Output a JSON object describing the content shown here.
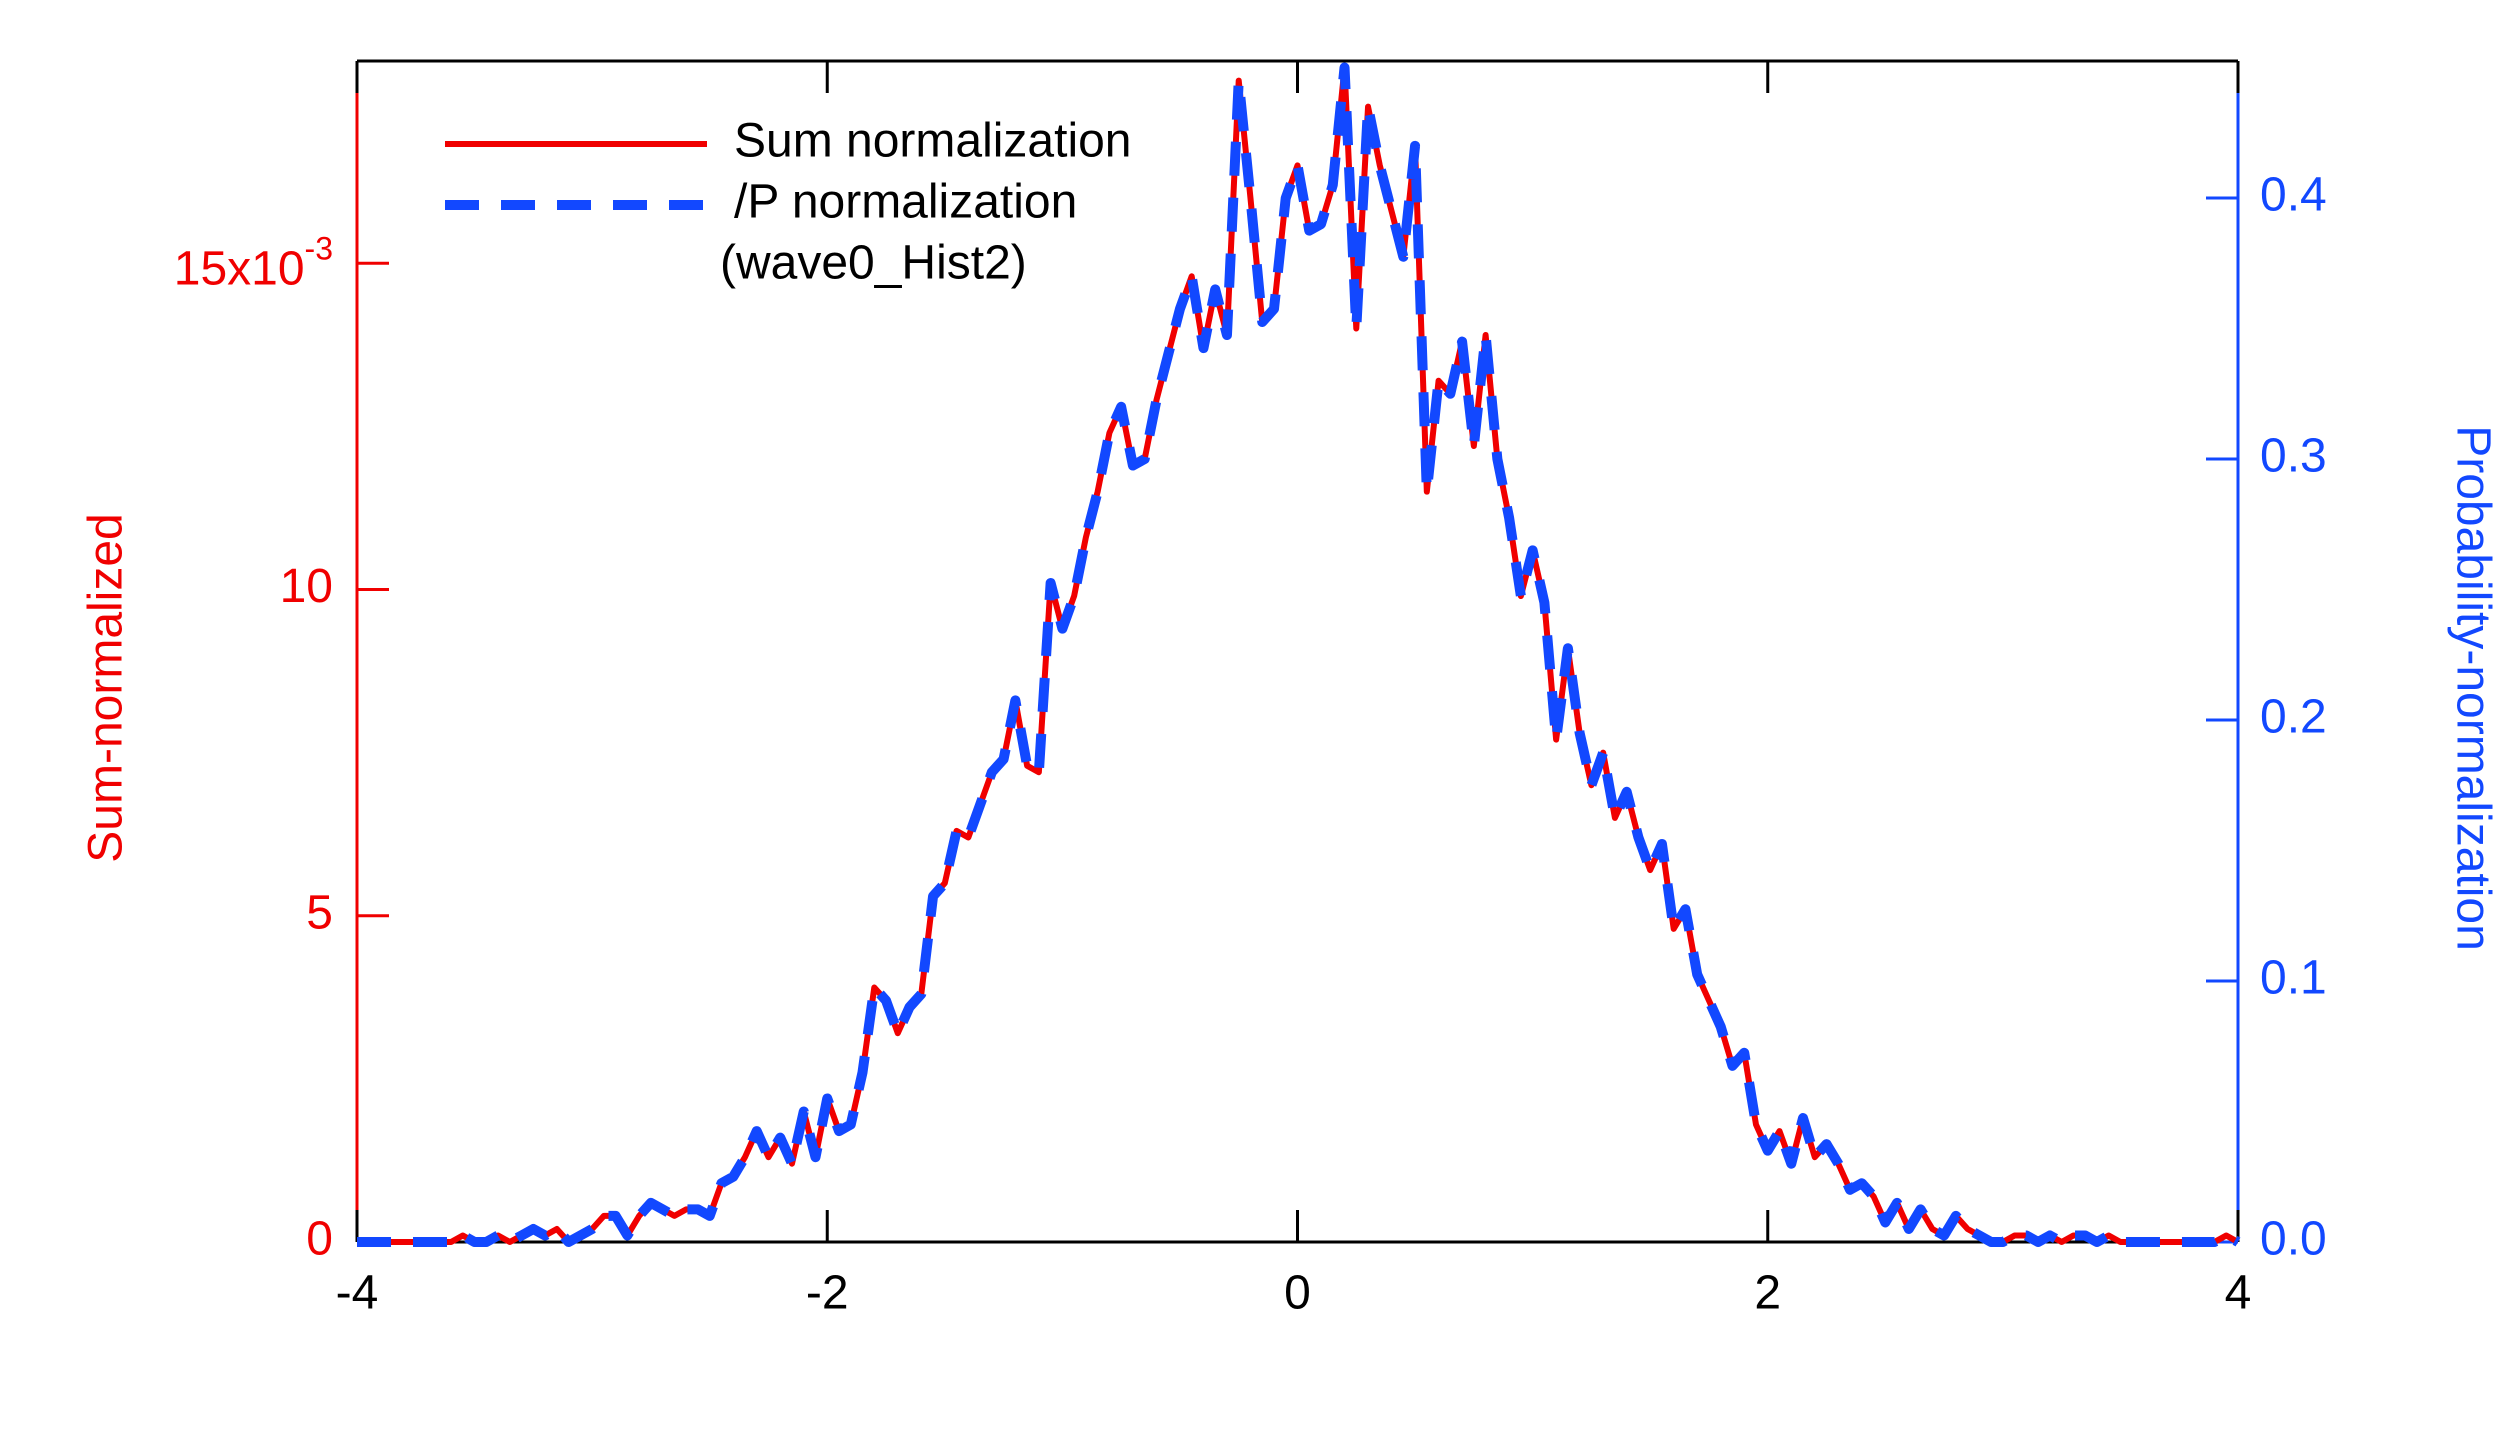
{
  "chart_data": {
    "type": "line",
    "ylabel": "Sum-normalized",
    "y2label": "Probability-normalization",
    "annotation": "(wave0_Hist2)",
    "xlim": [
      -4,
      4
    ],
    "xticks": [
      -4,
      -2,
      0,
      2,
      4
    ],
    "ylim": [
      0,
      18.1
    ],
    "yticks": [
      0,
      5,
      10,
      {
        "value": 15,
        "label": "15x10",
        "exponent": "-3"
      }
    ],
    "y2lim": [
      0,
      0.4525
    ],
    "y2ticks": [
      {
        "value": 0,
        "label": "0.0"
      },
      0.1,
      0.2,
      0.3,
      0.4
    ],
    "legend": "top-left",
    "x": [
      -4,
      -3.95,
      -3.9,
      -3.85,
      -3.8,
      -3.75,
      -3.7,
      -3.65,
      -3.6,
      -3.55,
      -3.5,
      -3.45,
      -3.4,
      -3.35,
      -3.3,
      -3.25,
      -3.2,
      -3.15,
      -3.1,
      -3.05,
      -3,
      -2.95,
      -2.9,
      -2.85,
      -2.8,
      -2.75,
      -2.7,
      -2.65,
      -2.6,
      -2.55,
      -2.5,
      -2.45,
      -2.4,
      -2.35,
      -2.3,
      -2.25,
      -2.2,
      -2.15,
      -2.1,
      -2.05,
      -2,
      -1.95,
      -1.9,
      -1.85,
      -1.8,
      -1.75,
      -1.7,
      -1.65,
      -1.6,
      -1.55,
      -1.5,
      -1.45,
      -1.4,
      -1.35,
      -1.3,
      -1.25,
      -1.2,
      -1.15,
      -1.1,
      -1.05,
      -1,
      -0.95,
      -0.9,
      -0.85,
      -0.8,
      -0.75,
      -0.7,
      -0.65,
      -0.6,
      -0.55,
      -0.5,
      -0.45,
      -0.4,
      -0.35,
      -0.3,
      -0.25,
      -0.2,
      -0.15,
      -0.1,
      -0.05,
      0,
      0.05,
      0.1,
      0.15,
      0.2,
      0.25,
      0.3,
      0.35,
      0.4,
      0.45,
      0.5,
      0.55,
      0.6,
      0.65,
      0.7,
      0.75,
      0.8,
      0.85,
      0.9,
      0.95,
      1,
      1.05,
      1.1,
      1.15,
      1.2,
      1.25,
      1.3,
      1.35,
      1.4,
      1.45,
      1.5,
      1.55,
      1.6,
      1.65,
      1.7,
      1.75,
      1.8,
      1.85,
      1.9,
      1.95,
      2,
      2.05,
      2.1,
      2.15,
      2.2,
      2.25,
      2.3,
      2.35,
      2.4,
      2.45,
      2.5,
      2.55,
      2.6,
      2.65,
      2.7,
      2.75,
      2.8,
      2.85,
      2.9,
      2.95,
      3,
      3.05,
      3.1,
      3.15,
      3.2,
      3.25,
      3.3,
      3.35,
      3.4,
      3.45,
      3.5,
      3.55,
      3.6,
      3.65,
      3.7,
      3.75,
      3.8,
      3.85,
      3.9,
      3.95,
      4
    ],
    "series": [
      {
        "name": "Sum normalization",
        "color": "#f00000",
        "style": "solid",
        "values": [
          0,
          0,
          0,
          0,
          0,
          0,
          0,
          0,
          0,
          0.1,
          0,
          0,
          0.1,
          0,
          0.1,
          0.2,
          0.1,
          0.2,
          0,
          0.1,
          0.2,
          0.4,
          0.4,
          0.1,
          0.4,
          0.6,
          0.5,
          0.4,
          0.5,
          0.5,
          0.4,
          0.9,
          1.0,
          1.3,
          1.7,
          1.3,
          1.6,
          1.2,
          2.0,
          1.3,
          2.2,
          1.7,
          1.8,
          2.6,
          3.9,
          3.7,
          3.2,
          3.6,
          3.8,
          5.3,
          5.5,
          6.3,
          6.2,
          6.7,
          7.2,
          7.4,
          8.3,
          7.3,
          7.2,
          10.1,
          9.4,
          9.9,
          10.8,
          11.5,
          12.4,
          12.8,
          11.9,
          12.0,
          12.9,
          13.6,
          14.3,
          14.8,
          13.7,
          14.6,
          13.9,
          17.8,
          16.0,
          14.1,
          14.3,
          16.0,
          16.5,
          15.5,
          15.6,
          16.2,
          18.0,
          14.0,
          17.4,
          16.5,
          15.8,
          15.1,
          16.8,
          11.5,
          13.2,
          13.0,
          13.8,
          12.2,
          13.9,
          12.0,
          11.1,
          9.9,
          10.6,
          9.8,
          7.7,
          9.1,
          7.8,
          7.0,
          7.5,
          6.5,
          6.9,
          6.2,
          5.7,
          6.1,
          4.8,
          5.1,
          4.1,
          3.7,
          3.3,
          2.7,
          2.9,
          1.8,
          1.4,
          1.7,
          1.2,
          1.9,
          1.3,
          1.5,
          1.2,
          0.8,
          0.9,
          0.7,
          0.3,
          0.6,
          0.2,
          0.5,
          0.2,
          0.1,
          0.4,
          0.2,
          0.1,
          0,
          0,
          0.1,
          0.1,
          0,
          0.1,
          0,
          0.1,
          0.1,
          0,
          0.1,
          0,
          0,
          0,
          0,
          0,
          0,
          0,
          0,
          0,
          0.1,
          0
        ]
      },
      {
        "name": "/P normalization",
        "color": "#1248ff",
        "style": "dashed",
        "axis": "y2",
        "values": [
          0,
          0,
          0,
          0,
          0,
          0,
          0,
          0,
          0,
          0.0025,
          0,
          0,
          0.0025,
          0,
          0.0025,
          0.005,
          0.0025,
          0.005,
          0,
          0.0025,
          0.005,
          0.01,
          0.01,
          0.0025,
          0.01,
          0.015,
          0.0125,
          0.01,
          0.0125,
          0.0125,
          0.01,
          0.0225,
          0.025,
          0.0325,
          0.0425,
          0.0325,
          0.04,
          0.03,
          0.05,
          0.0325,
          0.055,
          0.0425,
          0.045,
          0.065,
          0.0975,
          0.0925,
          0.08,
          0.09,
          0.095,
          0.1325,
          0.1375,
          0.1575,
          0.155,
          0.1675,
          0.18,
          0.185,
          0.2075,
          0.1825,
          0.18,
          0.2525,
          0.235,
          0.2475,
          0.27,
          0.2875,
          0.31,
          0.32,
          0.2975,
          0.3,
          0.3225,
          0.34,
          0.3575,
          0.37,
          0.3425,
          0.365,
          0.3475,
          0.445,
          0.4,
          0.3525,
          0.3575,
          0.4,
          0.4125,
          0.3875,
          0.39,
          0.405,
          0.45,
          0.35,
          0.435,
          0.4125,
          0.395,
          0.3775,
          0.42,
          0.2875,
          0.33,
          0.325,
          0.345,
          0.305,
          0.3475,
          0.3,
          0.2775,
          0.2475,
          0.265,
          0.245,
          0.1925,
          0.2275,
          0.195,
          0.175,
          0.1875,
          0.1625,
          0.1725,
          0.155,
          0.1425,
          0.1525,
          0.12,
          0.1275,
          0.1025,
          0.0925,
          0.0825,
          0.0675,
          0.0725,
          0.045,
          0.035,
          0.0425,
          0.03,
          0.0475,
          0.0325,
          0.0375,
          0.03,
          0.02,
          0.0225,
          0.0175,
          0.0075,
          0.015,
          0.005,
          0.0125,
          0.005,
          0.0025,
          0.01,
          0.005,
          0.0025,
          0,
          0,
          0.0025,
          0.0025,
          0,
          0.0025,
          0,
          0.0025,
          0.0025,
          0,
          0.0025,
          0,
          0,
          0,
          0,
          0,
          0,
          0,
          0,
          0,
          0.0025,
          0
        ]
      }
    ]
  }
}
